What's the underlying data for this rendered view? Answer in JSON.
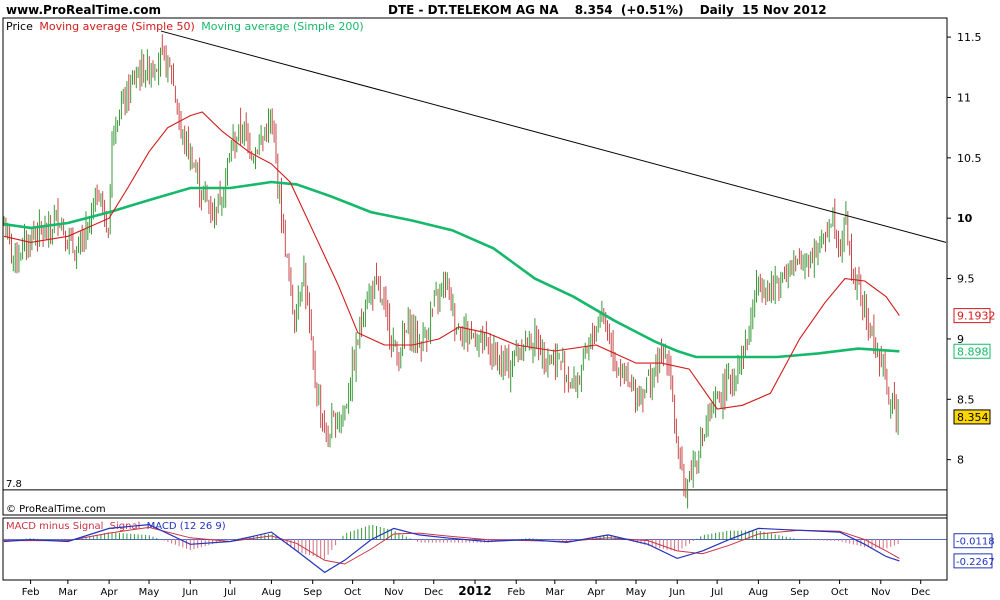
{
  "header": {
    "site": "www.ProRealTime.com",
    "instrument": "DTE - DT.TELEKOM AG NA",
    "price": "8.354",
    "change": "(+0.51%)",
    "interval": "Daily",
    "date": "15 Nov 2012"
  },
  "legend": {
    "price": "Price",
    "ma50": "Moving average (Simple 50)",
    "ma200": "Moving average (Simple 200)"
  },
  "watermark": "© ProRealTime.com",
  "macd_legend": {
    "hist": "MACD minus Signal",
    "signal": "Signal",
    "macd": "MACD (12 26 9)"
  },
  "colors": {
    "up_bar": "#3a9a3a",
    "down_bar": "#c84a4a",
    "ma50": "#d21a1a",
    "ma200": "#16b86a",
    "trendline": "#000000",
    "macd_line": "#2233bb",
    "signal_line": "#cc3344",
    "hist": "#d07080",
    "hist_up": "#3a9a3a",
    "current_price_bg": "#ffd700"
  },
  "chart_data": [
    {
      "type": "line",
      "name": "price",
      "y_ticks": [
        "11.5",
        "11",
        "10.5",
        "10",
        "9.5",
        "9",
        "8.5",
        "8"
      ],
      "y_ticks_values": [
        11.5,
        11,
        10.5,
        10,
        9.5,
        9,
        8.5,
        8
      ],
      "ylim": [
        7.55,
        11.65
      ],
      "x_ticks": [
        "Feb",
        "Mar",
        "Apr",
        "May",
        "Jun",
        "Jul",
        "Aug",
        "Sep",
        "Oct",
        "Nov",
        "Dec",
        "2012",
        "Feb",
        "Mar",
        "Apr",
        "May",
        "Jun",
        "Jul",
        "Aug",
        "Sep",
        "Oct",
        "Nov",
        "Dec"
      ],
      "x_ticks_dates": [
        "2011-02-01",
        "2011-03-01",
        "2011-04-01",
        "2011-05-01",
        "2011-06-01",
        "2011-07-01",
        "2011-08-01",
        "2011-09-01",
        "2011-10-01",
        "2011-11-01",
        "2011-12-01",
        "2012-01-01",
        "2012-02-01",
        "2012-03-01",
        "2012-04-01",
        "2012-05-01",
        "2012-06-01",
        "2012-07-01",
        "2012-08-01",
        "2012-09-01",
        "2012-10-01",
        "2012-11-01",
        "2012-12-01"
      ],
      "xlim": [
        "2011-01-12",
        "2012-12-20"
      ],
      "close_path": [
        [
          "2011-01-12",
          9.95
        ],
        [
          "2011-01-20",
          9.65
        ],
        [
          "2011-01-28",
          9.78
        ],
        [
          "2011-02-05",
          9.9
        ],
        [
          "2011-02-14",
          9.85
        ],
        [
          "2011-02-22",
          10.05
        ],
        [
          "2011-03-01",
          9.8
        ],
        [
          "2011-03-08",
          9.7
        ],
        [
          "2011-03-16",
          9.9
        ],
        [
          "2011-03-24",
          10.25
        ],
        [
          "2011-03-31",
          9.85
        ],
        [
          "2011-04-04",
          10.8
        ],
        [
          "2011-04-12",
          10.95
        ],
        [
          "2011-04-22",
          11.2
        ],
        [
          "2011-05-02",
          11.25
        ],
        [
          "2011-05-10",
          11.35
        ],
        [
          "2011-05-18",
          11.2
        ],
        [
          "2011-05-25",
          10.7
        ],
        [
          "2011-06-02",
          10.5
        ],
        [
          "2011-06-10",
          10.2
        ],
        [
          "2011-06-18",
          10.05
        ],
        [
          "2011-06-25",
          10.2
        ],
        [
          "2011-07-02",
          10.6
        ],
        [
          "2011-07-10",
          10.75
        ],
        [
          "2011-07-18",
          10.55
        ],
        [
          "2011-07-25",
          10.65
        ],
        [
          "2011-08-01",
          10.8
        ],
        [
          "2011-08-05",
          10.4
        ],
        [
          "2011-08-10",
          9.9
        ],
        [
          "2011-08-18",
          9.15
        ],
        [
          "2011-08-25",
          9.6
        ],
        [
          "2011-09-02",
          8.7
        ],
        [
          "2011-09-12",
          8.15
        ],
        [
          "2011-09-16",
          8.3
        ],
        [
          "2011-09-25",
          8.4
        ],
        [
          "2011-10-02",
          8.8
        ],
        [
          "2011-10-10",
          9.3
        ],
        [
          "2011-10-18",
          9.45
        ],
        [
          "2011-10-26",
          9.2
        ],
        [
          "2011-11-03",
          8.85
        ],
        [
          "2011-11-12",
          9.1
        ],
        [
          "2011-11-22",
          8.95
        ],
        [
          "2011-12-02",
          9.3
        ],
        [
          "2011-12-10",
          9.5
        ],
        [
          "2011-12-18",
          9.1
        ],
        [
          "2011-12-28",
          9.05
        ],
        [
          "2012-01-06",
          9.0
        ],
        [
          "2012-01-16",
          8.85
        ],
        [
          "2012-01-26",
          8.75
        ],
        [
          "2012-02-05",
          8.95
        ],
        [
          "2012-02-15",
          9.0
        ],
        [
          "2012-02-25",
          8.85
        ],
        [
          "2012-03-06",
          8.8
        ],
        [
          "2012-03-16",
          8.6
        ],
        [
          "2012-03-26",
          8.9
        ],
        [
          "2012-04-05",
          9.25
        ],
        [
          "2012-04-15",
          8.85
        ],
        [
          "2012-04-25",
          8.6
        ],
        [
          "2012-05-05",
          8.55
        ],
        [
          "2012-05-15",
          8.75
        ],
        [
          "2012-05-25",
          8.9
        ],
        [
          "2012-06-01",
          8.1
        ],
        [
          "2012-06-06",
          7.75
        ],
        [
          "2012-06-14",
          8.0
        ],
        [
          "2012-06-24",
          8.3
        ],
        [
          "2012-07-04",
          8.55
        ],
        [
          "2012-07-14",
          8.7
        ],
        [
          "2012-07-24",
          9.0
        ],
        [
          "2012-08-01",
          9.5
        ],
        [
          "2012-08-10",
          9.4
        ],
        [
          "2012-08-20",
          9.55
        ],
        [
          "2012-08-30",
          9.6
        ],
        [
          "2012-09-09",
          9.7
        ],
        [
          "2012-09-19",
          9.8
        ],
        [
          "2012-09-25",
          10.05
        ],
        [
          "2012-10-02",
          9.75
        ],
        [
          "2012-10-05",
          10.05
        ],
        [
          "2012-10-10",
          9.6
        ],
        [
          "2012-10-18",
          9.3
        ],
        [
          "2012-10-26",
          9.0
        ],
        [
          "2012-11-01",
          8.8
        ],
        [
          "2012-11-08",
          8.5
        ],
        [
          "2012-11-15",
          8.354
        ]
      ],
      "ma50": [
        [
          "2011-01-12",
          9.85
        ],
        [
          "2011-02-01",
          9.8
        ],
        [
          "2011-03-01",
          9.85
        ],
        [
          "2011-04-01",
          10.0
        ],
        [
          "2011-04-15",
          10.25
        ],
        [
          "2011-05-01",
          10.55
        ],
        [
          "2011-05-15",
          10.75
        ],
        [
          "2011-06-01",
          10.85
        ],
        [
          "2011-06-10",
          10.88
        ],
        [
          "2011-06-25",
          10.72
        ],
        [
          "2011-07-15",
          10.55
        ],
        [
          "2011-08-01",
          10.45
        ],
        [
          "2011-08-15",
          10.3
        ],
        [
          "2011-09-01",
          9.9
        ],
        [
          "2011-09-20",
          9.45
        ],
        [
          "2011-10-05",
          9.05
        ],
        [
          "2011-10-25",
          8.95
        ],
        [
          "2011-11-15",
          8.95
        ],
        [
          "2011-12-05",
          9.0
        ],
        [
          "2011-12-20",
          9.1
        ],
        [
          "2012-01-10",
          9.05
        ],
        [
          "2012-02-01",
          8.95
        ],
        [
          "2012-03-01",
          8.9
        ],
        [
          "2012-04-01",
          8.95
        ],
        [
          "2012-05-01",
          8.8
        ],
        [
          "2012-05-20",
          8.8
        ],
        [
          "2012-06-10",
          8.75
        ],
        [
          "2012-07-01",
          8.42
        ],
        [
          "2012-07-20",
          8.45
        ],
        [
          "2012-08-10",
          8.55
        ],
        [
          "2012-09-01",
          9.0
        ],
        [
          "2012-09-20",
          9.3
        ],
        [
          "2012-10-05",
          9.5
        ],
        [
          "2012-10-20",
          9.48
        ],
        [
          "2012-11-05",
          9.35
        ],
        [
          "2012-11-15",
          9.1932
        ]
      ],
      "ma200": [
        [
          "2011-01-12",
          9.95
        ],
        [
          "2011-02-01",
          9.92
        ],
        [
          "2011-03-01",
          9.96
        ],
        [
          "2011-04-01",
          10.05
        ],
        [
          "2011-05-01",
          10.15
        ],
        [
          "2011-06-01",
          10.25
        ],
        [
          "2011-07-01",
          10.25
        ],
        [
          "2011-08-01",
          10.3
        ],
        [
          "2011-08-20",
          10.28
        ],
        [
          "2011-09-15",
          10.18
        ],
        [
          "2011-10-15",
          10.05
        ],
        [
          "2011-11-15",
          9.98
        ],
        [
          "2011-12-15",
          9.9
        ],
        [
          "2012-01-15",
          9.75
        ],
        [
          "2012-02-15",
          9.5
        ],
        [
          "2012-03-15",
          9.35
        ],
        [
          "2012-04-15",
          9.15
        ],
        [
          "2012-05-15",
          8.98
        ],
        [
          "2012-06-01",
          8.9
        ],
        [
          "2012-06-15",
          8.85
        ],
        [
          "2012-07-15",
          8.85
        ],
        [
          "2012-08-15",
          8.85
        ],
        [
          "2012-09-15",
          8.88
        ],
        [
          "2012-10-15",
          8.92
        ],
        [
          "2012-11-15",
          8.898
        ]
      ],
      "trendline": [
        [
          "2011-05-10",
          11.55
        ],
        [
          "2012-12-20",
          9.8
        ]
      ],
      "lower_level": {
        "label": "7.8",
        "value": 7.75
      },
      "value_labels": [
        {
          "text": "9.1932",
          "value": 9.1932,
          "series": "ma50"
        },
        {
          "text": "8.898",
          "value": 8.898,
          "series": "ma200"
        },
        {
          "text": "8.354",
          "value": 8.354,
          "series": "price"
        }
      ]
    },
    {
      "type": "line",
      "name": "macd",
      "ylim": [
        -0.42,
        0.22
      ],
      "zero_value": 0.0,
      "macd": [
        [
          "2011-01-12",
          -0.02
        ],
        [
          "2011-02-01",
          0.0
        ],
        [
          "2011-03-01",
          -0.02
        ],
        [
          "2011-04-01",
          0.12
        ],
        [
          "2011-05-01",
          0.16
        ],
        [
          "2011-06-01",
          -0.05
        ],
        [
          "2011-07-01",
          -0.02
        ],
        [
          "2011-08-01",
          0.08
        ],
        [
          "2011-08-20",
          -0.12
        ],
        [
          "2011-09-10",
          -0.35
        ],
        [
          "2011-09-25",
          -0.22
        ],
        [
          "2011-10-15",
          0.0
        ],
        [
          "2011-11-01",
          0.12
        ],
        [
          "2011-11-20",
          0.05
        ],
        [
          "2011-12-10",
          0.02
        ],
        [
          "2012-01-10",
          -0.02
        ],
        [
          "2012-02-10",
          0.0
        ],
        [
          "2012-03-10",
          -0.03
        ],
        [
          "2012-04-10",
          0.05
        ],
        [
          "2012-05-10",
          -0.05
        ],
        [
          "2012-06-01",
          -0.2
        ],
        [
          "2012-06-20",
          -0.12
        ],
        [
          "2012-07-10",
          0.0
        ],
        [
          "2012-08-01",
          0.12
        ],
        [
          "2012-09-01",
          0.1
        ],
        [
          "2012-10-01",
          0.08
        ],
        [
          "2012-10-20",
          -0.05
        ],
        [
          "2012-11-05",
          -0.18
        ],
        [
          "2012-11-15",
          -0.2267
        ]
      ],
      "signal": [
        [
          "2011-01-12",
          -0.01
        ],
        [
          "2011-02-01",
          -0.01
        ],
        [
          "2011-03-01",
          -0.01
        ],
        [
          "2011-04-01",
          0.07
        ],
        [
          "2011-05-01",
          0.13
        ],
        [
          "2011-06-01",
          0.02
        ],
        [
          "2011-07-01",
          -0.02
        ],
        [
          "2011-08-01",
          0.04
        ],
        [
          "2011-08-20",
          -0.04
        ],
        [
          "2011-09-10",
          -0.22
        ],
        [
          "2011-09-25",
          -0.26
        ],
        [
          "2011-10-15",
          -0.1
        ],
        [
          "2011-11-01",
          0.06
        ],
        [
          "2011-11-20",
          0.07
        ],
        [
          "2011-12-10",
          0.04
        ],
        [
          "2012-01-10",
          0.0
        ],
        [
          "2012-02-10",
          -0.01
        ],
        [
          "2012-03-10",
          -0.02
        ],
        [
          "2012-04-10",
          0.02
        ],
        [
          "2012-05-10",
          -0.01
        ],
        [
          "2012-06-01",
          -0.12
        ],
        [
          "2012-06-20",
          -0.15
        ],
        [
          "2012-07-10",
          -0.06
        ],
        [
          "2012-08-01",
          0.06
        ],
        [
          "2012-09-01",
          0.1
        ],
        [
          "2012-10-01",
          0.09
        ],
        [
          "2012-10-20",
          0.0
        ],
        [
          "2012-11-05",
          -0.12
        ],
        [
          "2012-11-15",
          -0.2
        ]
      ],
      "value_labels": [
        {
          "text": "-0.0118",
          "value": -0.0118
        },
        {
          "text": "-0.2267",
          "value": -0.2267
        }
      ]
    }
  ]
}
